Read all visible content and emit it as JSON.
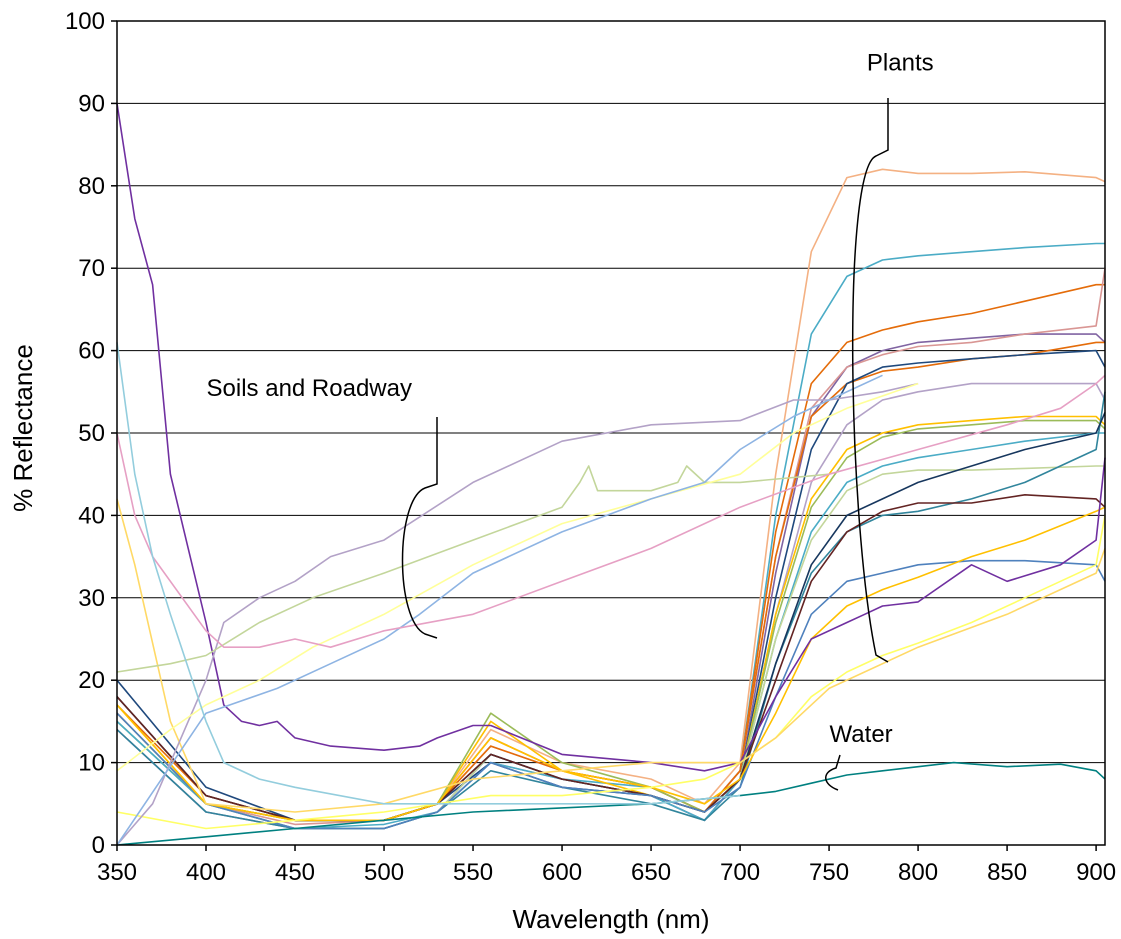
{
  "chart_data": {
    "type": "line",
    "title": "",
    "xlabel": "Wavelength (nm)",
    "ylabel": "% Reflectance",
    "xlim": [
      350,
      905
    ],
    "ylim": [
      0,
      100
    ],
    "x_ticks": [
      "350",
      "400",
      "450",
      "500",
      "550",
      "600",
      "650",
      "700",
      "750",
      "800",
      "850",
      "900"
    ],
    "y_ticks": [
      "0",
      "10",
      "20",
      "30",
      "40",
      "50",
      "60",
      "70",
      "80",
      "90",
      "100"
    ],
    "grid": "horizontal",
    "legend": "none",
    "annotations": [
      {
        "text": "Plants",
        "x": 790,
        "y": 94
      },
      {
        "text": "Soils and Roadway",
        "x": 458,
        "y": 54.5
      },
      {
        "text": "Water",
        "x": 768,
        "y": 12.5
      }
    ],
    "series": [
      {
        "color": "#f4b183",
        "x": [
          350,
          400,
          450,
          500,
          530,
          560,
          600,
          650,
          680,
          700,
          720,
          740,
          760,
          780,
          800,
          830,
          860,
          900,
          905
        ],
        "y": [
          18,
          6,
          3,
          3,
          5,
          14,
          10,
          8,
          5,
          10,
          45,
          72,
          81,
          82,
          81.5,
          81.5,
          81.7,
          81,
          80.5
        ]
      },
      {
        "color": "#4bacc6",
        "x": [
          350,
          400,
          450,
          500,
          530,
          560,
          600,
          650,
          680,
          700,
          720,
          740,
          760,
          780,
          800,
          830,
          860,
          900,
          905
        ],
        "y": [
          15,
          5,
          2,
          2.5,
          4,
          11,
          8,
          7,
          4,
          9,
          40,
          62,
          69,
          71,
          71.5,
          72,
          72.5,
          73,
          73
        ]
      },
      {
        "color": "#e46c0a",
        "x": [
          350,
          400,
          450,
          500,
          530,
          560,
          600,
          650,
          680,
          700,
          720,
          740,
          760,
          780,
          800,
          830,
          860,
          900,
          905
        ],
        "y": [
          17,
          6,
          3,
          3,
          5,
          13,
          9,
          7,
          4,
          9,
          38,
          56,
          61,
          62.5,
          63.5,
          64.5,
          66,
          68,
          68
        ]
      },
      {
        "color": "#8064a2",
        "x": [
          350,
          400,
          450,
          500,
          530,
          560,
          600,
          650,
          680,
          700,
          720,
          740,
          760,
          780,
          800,
          830,
          860,
          900,
          905
        ],
        "y": [
          14,
          4,
          2,
          2,
          4,
          11,
          8,
          6,
          3,
          8,
          33,
          52,
          58,
          60,
          61,
          61.5,
          62,
          62,
          61
        ]
      },
      {
        "color": "#d99694",
        "x": [
          350,
          400,
          450,
          500,
          530,
          560,
          600,
          650,
          680,
          700,
          720,
          740,
          760,
          780,
          800,
          830,
          860,
          900,
          905
        ],
        "y": [
          16,
          5,
          2.5,
          3,
          5,
          12,
          9,
          7,
          4,
          9,
          35,
          53,
          58,
          59.5,
          60.5,
          61,
          62,
          63,
          70
        ]
      },
      {
        "color": "#e46c0a",
        "x": [
          350,
          400,
          450,
          500,
          530,
          560,
          600,
          650,
          680,
          700,
          720,
          740,
          760,
          780,
          800,
          830,
          860,
          900,
          905
        ],
        "y": [
          16,
          5,
          3,
          3,
          5,
          12,
          9,
          7,
          4,
          9,
          35,
          52,
          56,
          57.5,
          58,
          59,
          59.5,
          61,
          61
        ]
      },
      {
        "color": "#1f497d",
        "x": [
          350,
          400,
          450,
          500,
          530,
          560,
          600,
          650,
          680,
          700,
          720,
          740,
          760,
          780,
          800,
          830,
          860,
          900,
          905
        ],
        "y": [
          20,
          7,
          3,
          3,
          5,
          10,
          7,
          6,
          3,
          8,
          30,
          48,
          56,
          58,
          58.5,
          59,
          59.5,
          60,
          58
        ]
      },
      {
        "color": "#b3a2c7",
        "x": [
          350,
          400,
          450,
          500,
          530,
          560,
          600,
          650,
          680,
          700,
          720,
          740,
          760,
          780,
          800,
          830,
          860,
          900,
          905
        ],
        "y": [
          16,
          5,
          2,
          2,
          4,
          10,
          8,
          6,
          3,
          8,
          28,
          44,
          51,
          54,
          55,
          56,
          56,
          56,
          54
        ]
      },
      {
        "color": "#ffc000",
        "x": [
          350,
          400,
          450,
          500,
          530,
          560,
          600,
          650,
          680,
          700,
          720,
          740,
          760,
          780,
          800,
          830,
          860,
          900,
          905
        ],
        "y": [
          17,
          5,
          3,
          3,
          5,
          15,
          9,
          6,
          4,
          8,
          28,
          42,
          48,
          50,
          51,
          51.5,
          52,
          52,
          51
        ]
      },
      {
        "color": "#9bbb59",
        "x": [
          350,
          400,
          450,
          500,
          530,
          560,
          600,
          650,
          680,
          700,
          720,
          740,
          760,
          780,
          800,
          830,
          860,
          900,
          905
        ],
        "y": [
          15,
          5,
          3,
          3,
          5,
          16,
          10,
          7,
          4,
          8,
          27,
          41,
          47,
          49.5,
          50.5,
          51,
          51.5,
          51.5,
          50.5
        ]
      },
      {
        "color": "#4bacc6",
        "x": [
          350,
          400,
          450,
          500,
          530,
          560,
          600,
          650,
          680,
          700,
          720,
          740,
          760,
          780,
          800,
          830,
          860,
          900,
          905
        ],
        "y": [
          15,
          5,
          2,
          2,
          4,
          10,
          8,
          6,
          3,
          8,
          25,
          38,
          44,
          46,
          47,
          48,
          49,
          50,
          50
        ]
      },
      {
        "color": "#c3d69b",
        "x": [
          350,
          400,
          450,
          500,
          530,
          560,
          600,
          650,
          680,
          700,
          720,
          740,
          760,
          780,
          800,
          830,
          860,
          900,
          905
        ],
        "y": [
          16,
          5,
          2,
          2,
          4,
          11,
          8,
          6,
          4,
          8,
          25,
          37,
          43,
          45,
          45.5,
          45.5,
          45.7,
          46,
          46
        ]
      },
      {
        "color": "#31859c",
        "x": [
          350,
          400,
          450,
          500,
          530,
          560,
          600,
          650,
          680,
          700,
          720,
          740,
          760,
          780,
          800,
          830,
          860,
          900,
          905
        ],
        "y": [
          14,
          4,
          2,
          2,
          4,
          9,
          7,
          5,
          3,
          7,
          22,
          33,
          38,
          40,
          40.5,
          42,
          44,
          48,
          55
        ]
      },
      {
        "color": "#17375e",
        "x": [
          350,
          400,
          450,
          500,
          530,
          560,
          600,
          650,
          680,
          700,
          720,
          740,
          760,
          780,
          800,
          830,
          860,
          900,
          905
        ],
        "y": [
          18,
          6,
          3,
          3,
          5,
          11,
          8,
          6,
          4,
          8,
          22,
          34,
          40,
          42,
          44,
          46,
          48,
          50,
          52.5
        ]
      },
      {
        "color": "#632423",
        "x": [
          350,
          400,
          450,
          500,
          530,
          560,
          600,
          650,
          680,
          700,
          720,
          740,
          760,
          780,
          800,
          830,
          860,
          900,
          905
        ],
        "y": [
          18,
          6,
          3,
          3,
          5,
          11,
          8,
          6,
          4,
          8,
          20,
          32,
          38,
          40.5,
          41.5,
          41.5,
          42.5,
          42,
          41
        ]
      },
      {
        "color": "#4f81bd",
        "x": [
          350,
          400,
          450,
          500,
          530,
          560,
          600,
          650,
          680,
          700,
          720,
          740,
          760,
          780,
          800,
          830,
          860,
          900,
          905
        ],
        "y": [
          16,
          5,
          2,
          2,
          4,
          10,
          7,
          6,
          4,
          7,
          18,
          28,
          32,
          33,
          34,
          34.5,
          34.5,
          34,
          32
        ]
      },
      {
        "color": "#ffc000",
        "x": [
          350,
          400,
          450,
          500,
          530,
          560,
          600,
          650,
          680,
          700,
          720,
          740,
          760,
          780,
          800,
          830,
          860,
          900,
          905
        ],
        "y": [
          17,
          5,
          3,
          3,
          5,
          13,
          9,
          7,
          5,
          8,
          16,
          25,
          29,
          31,
          32.5,
          35,
          37,
          40.5,
          41
        ]
      },
      {
        "color": "#7030a0",
        "x": [
          350,
          360,
          370,
          380,
          390,
          400,
          410,
          420,
          430,
          440,
          450,
          470,
          500,
          520,
          530,
          550,
          560,
          600,
          650,
          680,
          700,
          720,
          740,
          760,
          770,
          780,
          800,
          830,
          850,
          880,
          900,
          905
        ],
        "y": [
          90,
          76,
          68,
          45,
          36,
          27,
          17,
          15,
          14.5,
          15,
          13,
          12,
          11.5,
          12,
          13,
          14.5,
          14.5,
          11,
          10,
          9,
          10,
          18,
          25,
          27,
          28,
          29,
          29.5,
          34,
          32,
          34,
          37,
          47
        ]
      },
      {
        "color": "#ffff66",
        "x": [
          350,
          400,
          450,
          500,
          530,
          560,
          600,
          650,
          680,
          700,
          720,
          740,
          760,
          780,
          800,
          830,
          860,
          900,
          905
        ],
        "y": [
          4,
          2,
          3,
          4,
          5,
          6,
          6,
          7,
          8,
          10,
          13,
          18,
          21,
          23,
          24.5,
          27,
          30,
          34,
          40
        ]
      },
      {
        "color": "#ffd966",
        "x": [
          350,
          360,
          380,
          400,
          450,
          500,
          550,
          600,
          650,
          700,
          720,
          750,
          800,
          850,
          900,
          905
        ],
        "y": [
          42,
          34,
          15,
          5,
          4,
          5,
          8,
          9,
          10,
          10,
          13,
          19,
          24,
          28,
          33,
          36
        ]
      },
      {
        "color": "#008080",
        "x": [
          350,
          400,
          450,
          500,
          550,
          600,
          650,
          700,
          720,
          740,
          760,
          780,
          800,
          820,
          850,
          880,
          900,
          905
        ],
        "y": [
          0,
          1,
          2,
          3,
          4,
          4.5,
          5,
          6,
          6.5,
          7.5,
          8.5,
          9,
          9.5,
          10,
          9.5,
          9.8,
          9,
          8
        ]
      },
      {
        "color": "#b3a2c7",
        "x": [
          350,
          370,
          400,
          410,
          430,
          450,
          470,
          500,
          550,
          600,
          650,
          700,
          730,
          750,
          780,
          800
        ],
        "y": [
          0,
          5,
          20,
          27,
          30,
          32,
          35,
          37,
          44,
          49,
          51,
          51.5,
          54,
          54,
          55,
          56
        ]
      },
      {
        "color": "#c3d69b",
        "x": [
          350,
          380,
          400,
          430,
          460,
          500,
          550,
          600,
          610,
          615,
          620,
          650,
          665,
          670,
          680,
          700,
          750
        ],
        "y": [
          21,
          22,
          23,
          27,
          30,
          33,
          37,
          41,
          44,
          46,
          43,
          43,
          44,
          46,
          44,
          44,
          45
        ]
      },
      {
        "color": "#ffff99",
        "x": [
          350,
          380,
          400,
          430,
          460,
          500,
          550,
          600,
          650,
          700,
          730,
          760,
          800
        ],
        "y": [
          9,
          14,
          17,
          20,
          24,
          28,
          34,
          39,
          42,
          45,
          50,
          53,
          56
        ]
      },
      {
        "color": "#8eb4e3",
        "x": [
          350,
          400,
          440,
          470,
          500,
          520,
          550,
          600,
          650,
          680,
          700,
          730,
          750,
          780
        ],
        "y": [
          0,
          16,
          19,
          22,
          25,
          28,
          33,
          38,
          42,
          44,
          48,
          52,
          54,
          57
        ]
      },
      {
        "color": "#e6a0c4",
        "x": [
          350,
          360,
          370,
          400,
          410,
          430,
          450,
          470,
          500,
          550,
          600,
          650,
          700,
          750,
          800,
          850,
          880,
          900,
          905
        ],
        "y": [
          50,
          40,
          35,
          26,
          24,
          24,
          25,
          24,
          26,
          28,
          32,
          36,
          41,
          45,
          48,
          51,
          53,
          56,
          57
        ]
      },
      {
        "color": "#93cddd",
        "x": [
          350,
          360,
          370,
          380,
          400,
          410,
          430,
          450,
          500,
          550,
          600,
          650,
          700
        ],
        "y": [
          61,
          45,
          35,
          28,
          15,
          10,
          8,
          7,
          5,
          5,
          5,
          5,
          6
        ]
      }
    ]
  }
}
